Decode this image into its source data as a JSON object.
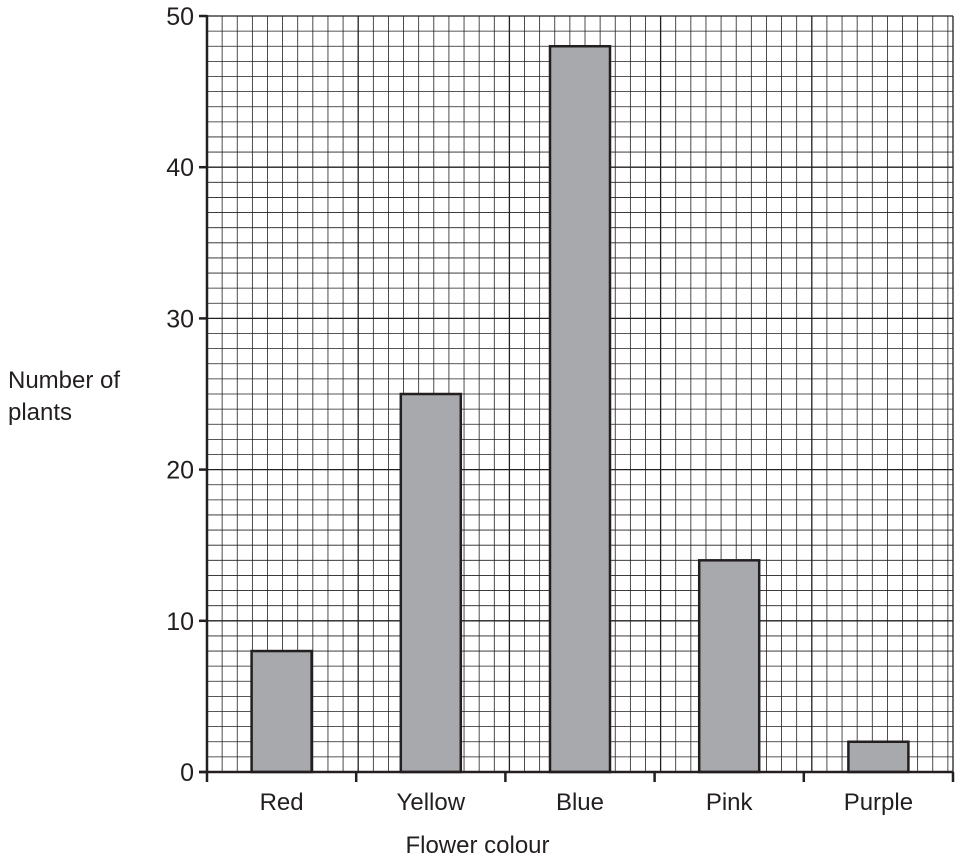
{
  "chart_data": {
    "type": "bar",
    "categories": [
      "Red",
      "Yellow",
      "Blue",
      "Pink",
      "Purple"
    ],
    "values": [
      8,
      25,
      48,
      14,
      2
    ],
    "xlabel": "Flower colour",
    "ylabel_lines": [
      "Number of",
      "plants"
    ],
    "ylim": [
      0,
      50
    ],
    "yticks": [
      0,
      10,
      20,
      30,
      40,
      50
    ],
    "grid": true,
    "minor_grid_step": 1,
    "colors": {
      "bar": "#a7a9ac",
      "bar_stroke": "#231f20",
      "grid": "#231f20",
      "text": "#231f20"
    }
  }
}
